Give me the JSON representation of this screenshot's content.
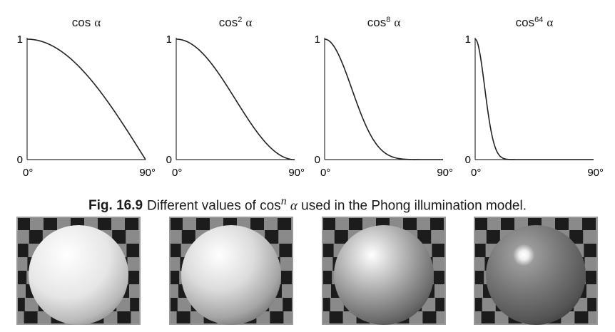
{
  "chart_data": [
    {
      "type": "line",
      "title": "cos α",
      "base": "cos",
      "exponent": "",
      "alpha": "α",
      "n": 1,
      "xlabel": "",
      "ylabel": "",
      "xlim": [
        0,
        90
      ],
      "ylim": [
        0,
        1
      ],
      "x_tick_labels": [
        "0°",
        "90°"
      ],
      "y_tick_labels": [
        "0",
        "1"
      ],
      "series": [
        {
          "x": [
            0,
            10,
            20,
            30,
            40,
            50,
            60,
            70,
            80,
            90
          ],
          "y": [
            1,
            0.985,
            0.94,
            0.866,
            0.766,
            0.643,
            0.5,
            0.342,
            0.174,
            0
          ]
        }
      ]
    },
    {
      "type": "line",
      "title": "cos² α",
      "base": "cos",
      "exponent": "2",
      "alpha": "α",
      "n": 2,
      "xlabel": "",
      "ylabel": "",
      "xlim": [
        0,
        90
      ],
      "ylim": [
        0,
        1
      ],
      "x_tick_labels": [
        "0°",
        "90°"
      ],
      "y_tick_labels": [
        "0",
        "1"
      ],
      "series": [
        {
          "x": [
            0,
            10,
            20,
            30,
            40,
            50,
            60,
            70,
            80,
            90
          ],
          "y": [
            1,
            0.97,
            0.883,
            0.75,
            0.587,
            0.413,
            0.25,
            0.117,
            0.03,
            0
          ]
        }
      ]
    },
    {
      "type": "line",
      "title": "cos⁸ α",
      "base": "cos",
      "exponent": "8",
      "alpha": "α",
      "n": 8,
      "xlabel": "",
      "ylabel": "",
      "xlim": [
        0,
        90
      ],
      "ylim": [
        0,
        1
      ],
      "x_tick_labels": [
        "0°",
        "90°"
      ],
      "y_tick_labels": [
        "0",
        "1"
      ],
      "series": [
        {
          "x": [
            0,
            10,
            20,
            30,
            40,
            50,
            60,
            70,
            80,
            90
          ],
          "y": [
            1,
            0.886,
            0.608,
            0.316,
            0.119,
            0.029,
            0.004,
            0,
            0,
            0
          ]
        }
      ]
    },
    {
      "type": "line",
      "title": "cos⁶⁴ α",
      "base": "cos",
      "exponent": "64",
      "alpha": "α",
      "n": 64,
      "xlabel": "",
      "ylabel": "",
      "xlim": [
        0,
        90
      ],
      "ylim": [
        0,
        1
      ],
      "x_tick_labels": [
        "0°",
        "90°"
      ],
      "y_tick_labels": [
        "0",
        "1"
      ],
      "series": [
        {
          "x": [
            0,
            5,
            10,
            15,
            20,
            25,
            30,
            40,
            50,
            90
          ],
          "y": [
            1,
            0.785,
            0.378,
            0.109,
            0.019,
            0.002,
            0,
            0,
            0,
            0
          ]
        }
      ]
    }
  ],
  "caption": {
    "figure_label": "Fig. 16.9",
    "text_before": "Different values of cos",
    "exponent": "n",
    "alpha": "α",
    "text_after": "used in the Phong illumination model."
  },
  "spheres": [
    {
      "exponent": 1
    },
    {
      "exponent": 2
    },
    {
      "exponent": 8
    },
    {
      "exponent": 64
    }
  ],
  "colors": {
    "curve": "#222222",
    "axis": "#333333",
    "checker_dark": "#1c1c1c",
    "checker_light": "#8a8a8a",
    "frame": "#9a9a9a"
  }
}
